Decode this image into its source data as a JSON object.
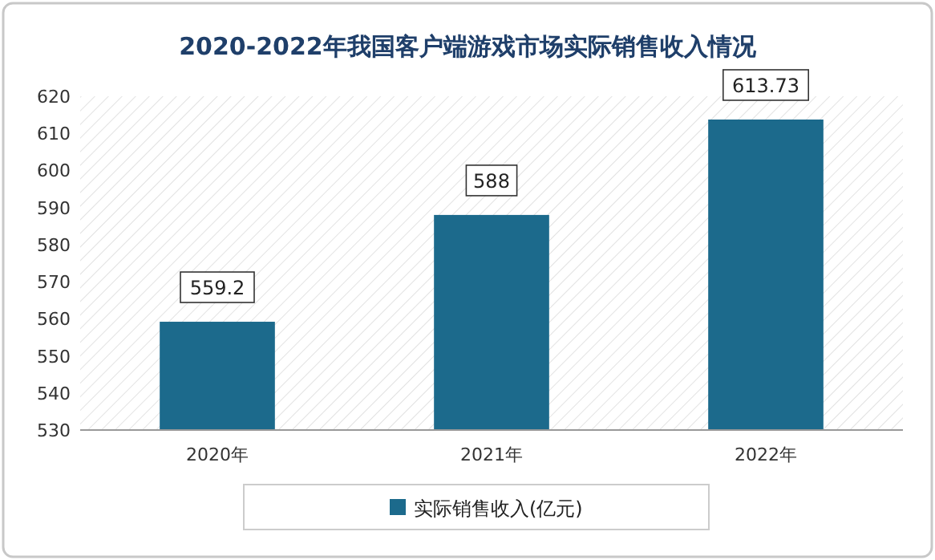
{
  "chart_data": {
    "type": "bar",
    "title": "2020-2022年我国客户端游戏市场实际销售收入情况",
    "categories": [
      "2020年",
      "2021年",
      "2022年"
    ],
    "series": [
      {
        "name": "实际销售收入(亿元)",
        "color": "#1c6a8c",
        "values": [
          559.2,
          588,
          613.73
        ]
      }
    ],
    "ylim": [
      530,
      620
    ],
    "yticks": [
      530,
      540,
      550,
      560,
      570,
      580,
      590,
      600,
      610,
      620
    ],
    "data_labels": true,
    "legend": "bottom",
    "grid": false
  }
}
